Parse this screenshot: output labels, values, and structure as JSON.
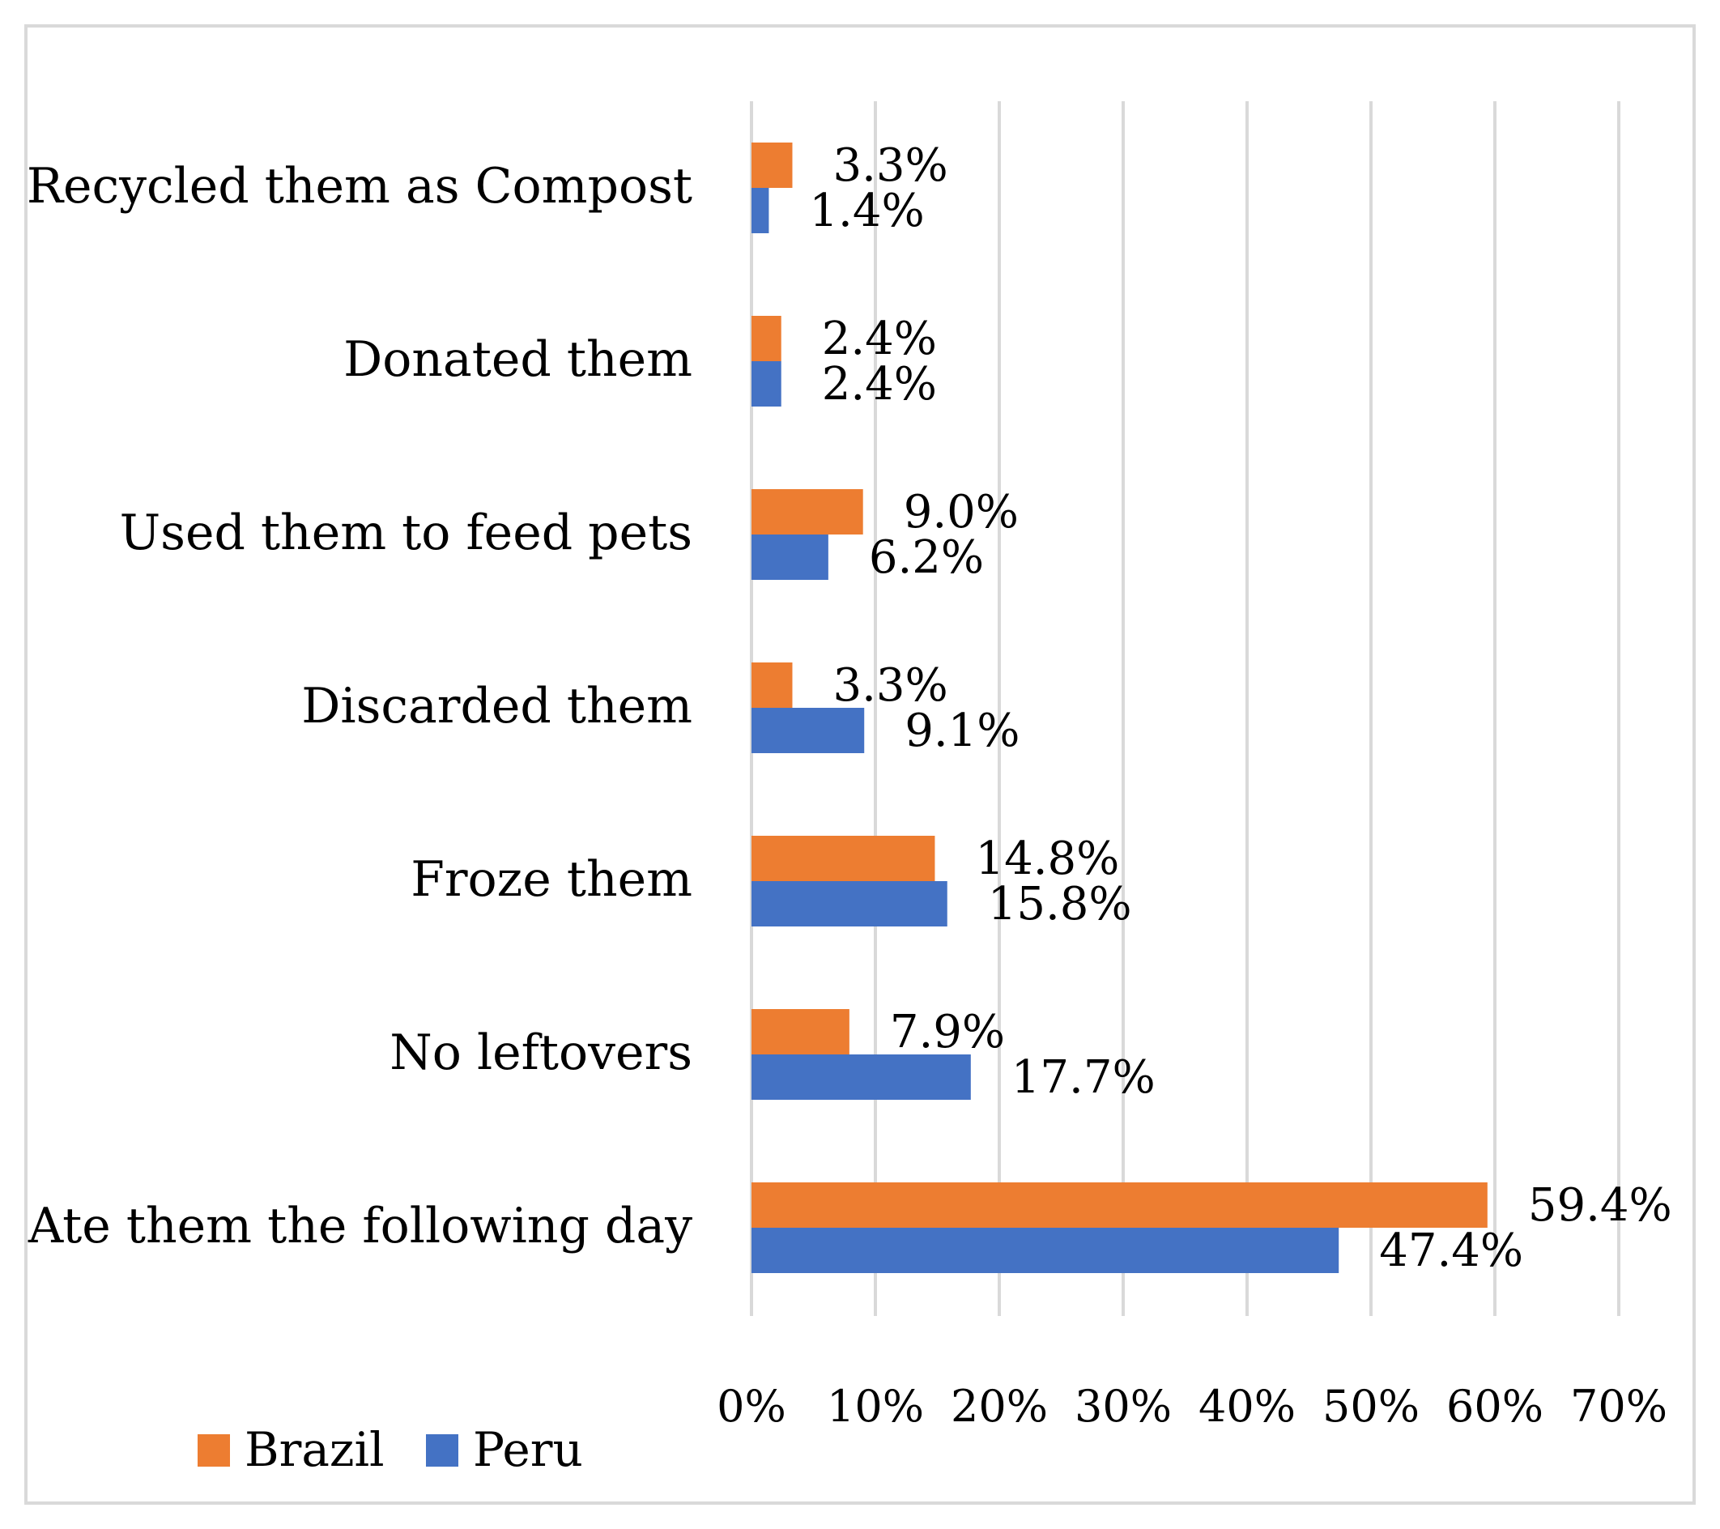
{
  "chart_data": {
    "type": "bar",
    "orientation": "horizontal",
    "title": "",
    "xlabel": "",
    "ylabel": "",
    "categories": [
      "Ate them the following day",
      "No leftovers",
      "Froze them",
      "Discarded them",
      "Used them to feed pets",
      "Donated them",
      "Recycled them as Compost"
    ],
    "series": [
      {
        "name": "Brazil",
        "color": "#ED7D31",
        "values": [
          59.4,
          7.9,
          14.8,
          3.3,
          9.0,
          2.4,
          3.3
        ],
        "labels": [
          "59.4%",
          "7.9%",
          "14.8%",
          "3.3%",
          "9.0%",
          "2.4%",
          "3.3%"
        ]
      },
      {
        "name": "Peru",
        "color": "#4472C4",
        "values": [
          47.4,
          17.7,
          15.8,
          9.1,
          6.2,
          2.4,
          1.4
        ],
        "labels": [
          "47.4%",
          "17.7%",
          "15.8%",
          "9.1%",
          "6.2%",
          "2.4%",
          "1.4%"
        ]
      }
    ],
    "xlim": [
      0,
      70
    ],
    "xticks": [
      0,
      10,
      20,
      30,
      40,
      50,
      60,
      70
    ],
    "xtick_labels": [
      "0%",
      "10%",
      "20%",
      "30%",
      "40%",
      "50%",
      "60%",
      "70%"
    ],
    "grid": true,
    "gridline_color": "#d9d9d9",
    "legend_position": "bottom-left"
  }
}
